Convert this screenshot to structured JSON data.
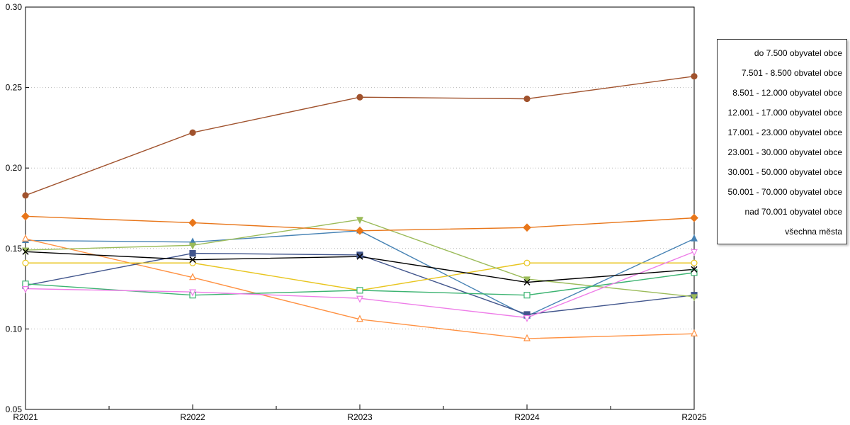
{
  "chart_data": {
    "type": "line",
    "title": "",
    "xlabel": "",
    "ylabel": "",
    "x_categories": [
      "R2021",
      "R2022",
      "R2023",
      "R2024",
      "R2025"
    ],
    "ylim": [
      0.05,
      0.3
    ],
    "y_ticks": [
      0.05,
      0.1,
      0.15,
      0.2,
      0.25,
      0.3
    ],
    "y_tick_labels": [
      "0.05",
      "0.10",
      "0.15",
      "0.20",
      "0.25",
      "0.30"
    ],
    "grid": "dotted-horizontal",
    "legend_position": "outside-right",
    "axis_color": "#000000",
    "grid_color": "#b8b8b8",
    "series": [
      {
        "name": "do 7.500 obyvatel obce",
        "color": "#4682B4",
        "marker": "triangle-up",
        "open": false,
        "values": [
          0.155,
          0.154,
          0.161,
          0.108,
          0.156
        ]
      },
      {
        "name": "7.501 - 8.500 obvatel obce",
        "color": "#FF9142",
        "marker": "triangle-up",
        "open": true,
        "values": [
          0.156,
          0.132,
          0.106,
          0.094,
          0.097
        ]
      },
      {
        "name": "8.501 - 12.000 obyvatel obce",
        "color": "#41558C",
        "marker": "square",
        "open": false,
        "values": [
          0.127,
          0.147,
          0.146,
          0.109,
          0.121
        ]
      },
      {
        "name": "12.001 - 17.000 obyvatel obce",
        "color": "#E8C51F",
        "marker": "circle",
        "open": true,
        "values": [
          0.141,
          0.141,
          0.124,
          0.141,
          0.141
        ]
      },
      {
        "name": "17.001 - 23.000 obyvatel obce",
        "color": "#9BBB59",
        "marker": "triangle-down",
        "open": false,
        "values": [
          0.149,
          0.152,
          0.168,
          0.131,
          0.12
        ]
      },
      {
        "name": "23.001 - 30.000 obyvatel obce",
        "color": "#3CB371",
        "marker": "square",
        "open": true,
        "values": [
          0.128,
          0.121,
          0.124,
          0.121,
          0.135
        ]
      },
      {
        "name": "30.001 - 50.000 obyvatel obce",
        "color": "#EE7DE8",
        "marker": "triangle-down",
        "open": true,
        "values": [
          0.125,
          0.123,
          0.119,
          0.107,
          0.148
        ]
      },
      {
        "name": "50.001 - 70.000 obyvatel obce",
        "color": "#E8761A",
        "marker": "diamond",
        "open": false,
        "values": [
          0.17,
          0.166,
          0.161,
          0.163,
          0.169
        ]
      },
      {
        "name": "nad 70.001 obyvatel obce",
        "color": "#A0522D",
        "marker": "circle",
        "open": false,
        "values": [
          0.183,
          0.222,
          0.244,
          0.243,
          0.257
        ]
      },
      {
        "name": "všechna města",
        "color": "#000000",
        "marker": "x",
        "open": false,
        "values": [
          0.148,
          0.143,
          0.145,
          0.129,
          0.137
        ]
      }
    ]
  }
}
